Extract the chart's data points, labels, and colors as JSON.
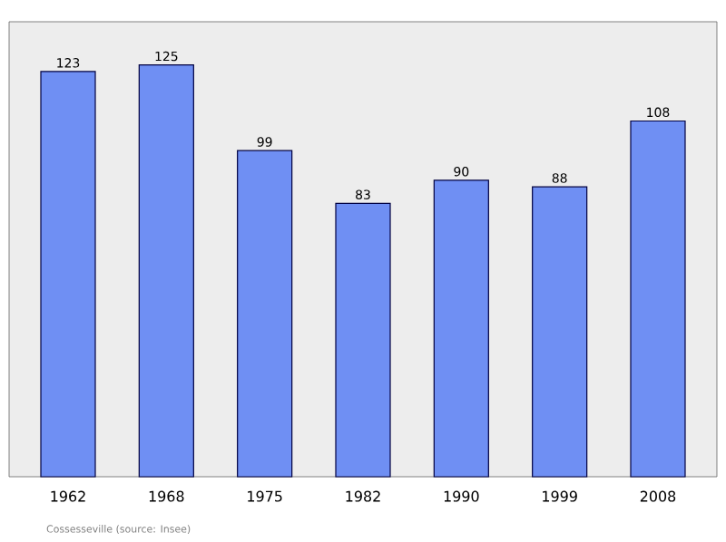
{
  "chart_data": {
    "type": "bar",
    "categories": [
      "1962",
      "1968",
      "1975",
      "1982",
      "1990",
      "1999",
      "2008"
    ],
    "values": [
      123,
      125,
      99,
      83,
      90,
      88,
      108
    ],
    "color": "#6f8ff3",
    "data_labels": true,
    "annotations": [
      "Cossesseville    (source: Insee)"
    ]
  }
}
